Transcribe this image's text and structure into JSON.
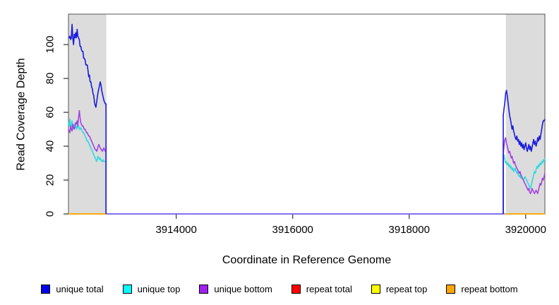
{
  "chart_data": {
    "type": "line",
    "title": "",
    "xlabel": "Coordinate in Reference Genome",
    "ylabel": "Read Coverage Depth",
    "x_domain": [
      3912150,
      3920330
    ],
    "y_domain": [
      0,
      118
    ],
    "x_ticks": [
      3914000,
      3916000,
      3918000,
      3920000
    ],
    "y_ticks": [
      0,
      20,
      40,
      60,
      80,
      100
    ],
    "grid": false,
    "legend_position": "bottom",
    "panel_background": "#ffffff",
    "box_color": "#555555",
    "shaded_regions": [
      {
        "name": "left-repeat-region",
        "x_start": 3912150,
        "x_end": 3912800,
        "color": "#dcdcdc"
      },
      {
        "name": "right-repeat-region",
        "x_start": 3919660,
        "x_end": 3920330,
        "color": "#dcdcdc"
      }
    ],
    "zero_baseline": {
      "note": "unique-series overlap at depth 0 between the repeat regions",
      "color": "#6f5fee",
      "x_start": 3912800,
      "x_end": 3919615,
      "value": 0
    },
    "series": [
      {
        "name": "repeat total",
        "color": "#ee0000",
        "segments": [
          {
            "x_start": 3912150,
            "x_end": 3912800,
            "values": [
              0,
              0
            ]
          },
          {
            "x_start": 3919660,
            "x_end": 3920330,
            "values": [
              0,
              0
            ]
          }
        ]
      },
      {
        "name": "repeat top",
        "color": "#ffff00",
        "segments": [
          {
            "x_start": 3912150,
            "x_end": 3912800,
            "values": [
              0,
              0
            ]
          },
          {
            "x_start": 3919660,
            "x_end": 3920330,
            "values": [
              0,
              0
            ]
          }
        ]
      },
      {
        "name": "repeat bottom",
        "color": "#ffa500",
        "segments": [
          {
            "x_start": 3912150,
            "x_end": 3912800,
            "values": [
              0,
              0
            ]
          },
          {
            "x_start": 3919660,
            "x_end": 3920330,
            "values": [
              0,
              0
            ]
          }
        ]
      },
      {
        "name": "unique top",
        "color": "#2fd9df",
        "segments": [
          {
            "x_start": 3912150,
            "x_end": 3912795,
            "zero_edge": "end",
            "values": [
              54,
              52,
              56,
              50,
              53,
              55,
              50,
              52,
              53,
              51,
              52,
              50,
              52,
              51,
              52,
              50,
              50,
              51,
              50,
              49,
              48,
              48,
              47,
              46,
              45,
              44,
              43,
              43,
              42,
              41,
              40,
              39,
              38,
              37,
              36,
              35,
              34,
              33,
              32,
              31,
              33,
              34,
              33,
              32,
              33,
              32,
              31,
              31,
              32,
              31,
              31,
              31,
              31
            ]
          },
          {
            "x_start": 3919615,
            "x_end": 3920330,
            "zero_edge": "start",
            "values": [
              33,
              35,
              32,
              30,
              31,
              29,
              30,
              28,
              29,
              27,
              28,
              26,
              27,
              25,
              26,
              27,
              25,
              24,
              25,
              23,
              22,
              23,
              21,
              22,
              21,
              20,
              21,
              22,
              21,
              20,
              19,
              18,
              17,
              16,
              15,
              17,
              19,
              21,
              23,
              25,
              24,
              26,
              28,
              27,
              29,
              28,
              30,
              29,
              31,
              30,
              32,
              31,
              33
            ]
          }
        ]
      },
      {
        "name": "unique bottom",
        "color": "#a144e0",
        "segments": [
          {
            "x_start": 3912150,
            "x_end": 3912795,
            "zero_edge": "end",
            "values": [
              50,
              49,
              48,
              52,
              50,
              49,
              53,
              51,
              50,
              52,
              54,
              53,
              55,
              52,
              57,
              61,
              57,
              54,
              53,
              52,
              52,
              51,
              50,
              50,
              49,
              48,
              48,
              47,
              46,
              46,
              45,
              44,
              43,
              42,
              41,
              40,
              39,
              38,
              38,
              37,
              38,
              40,
              41,
              40,
              39,
              38,
              38,
              37,
              38,
              39,
              38,
              37,
              37
            ]
          },
          {
            "x_start": 3919615,
            "x_end": 3920330,
            "zero_edge": "start",
            "values": [
              35,
              40,
              44,
              45,
              42,
              40,
              38,
              36,
              37,
              35,
              33,
              34,
              32,
              30,
              31,
              29,
              28,
              27,
              26,
              25,
              24,
              25,
              23,
              22,
              21,
              20,
              19,
              18,
              17,
              16,
              15,
              14,
              15,
              13,
              12,
              13,
              15,
              14,
              13,
              12,
              13,
              14,
              13,
              12,
              14,
              16,
              18,
              17,
              19,
              21,
              20,
              22,
              24
            ]
          }
        ]
      },
      {
        "name": "unique total",
        "color": "#1a1adf",
        "segments": [
          {
            "x_start": 3912150,
            "x_end": 3912795,
            "zero_edge": "end",
            "values": [
              104,
              104,
              105,
              103,
              104,
              112,
              104,
              100,
              106,
              104,
              107,
              104,
              109,
              105,
              104,
              103,
              99,
              99,
              97,
              96,
              96,
              92,
              92,
              91,
              88,
              88,
              88,
              85,
              81,
              82,
              78,
              78,
              75,
              74,
              71,
              70,
              66,
              64,
              63,
              66,
              69,
              72,
              74,
              76,
              78,
              76,
              73,
              71,
              69,
              67,
              66,
              65,
              65
            ]
          },
          {
            "x_start": 3919615,
            "x_end": 3920330,
            "zero_edge": "start",
            "values": [
              58,
              62,
              66,
              71,
              73,
              70,
              66,
              62,
              58,
              56,
              53,
              50,
              52,
              49,
              47,
              45,
              44,
              46,
              43,
              44,
              41,
              43,
              40,
              42,
              39,
              41,
              38,
              40,
              42,
              39,
              37,
              39,
              41,
              38,
              40,
              37,
              39,
              42,
              44,
              41,
              43,
              40,
              42,
              45,
              43,
              46,
              44,
              47,
              50,
              53,
              55,
              55,
              56
            ]
          }
        ]
      }
    ]
  },
  "legend": {
    "items": [
      {
        "label": "unique total",
        "color": "#0000ee"
      },
      {
        "label": "unique top",
        "color": "#00ffff"
      },
      {
        "label": "unique bottom",
        "color": "#a020f0"
      },
      {
        "label": "repeat total",
        "color": "#ff0000"
      },
      {
        "label": "repeat top",
        "color": "#ffff00"
      },
      {
        "label": "repeat bottom",
        "color": "#ffa500"
      }
    ]
  }
}
